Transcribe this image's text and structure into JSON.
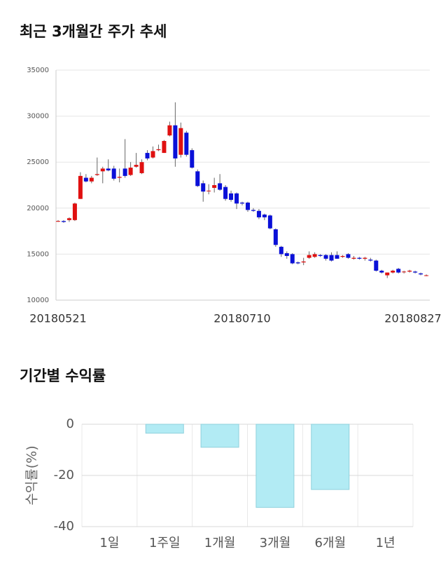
{
  "chart_data": [
    {
      "type": "candlestick",
      "title": "최근 3개월간 주가 추세",
      "categories": [
        "20180521",
        null,
        null,
        null,
        null,
        null,
        null,
        null,
        null,
        null,
        null,
        null,
        null,
        null,
        null,
        null,
        null,
        null,
        null,
        null,
        null,
        null,
        null,
        null,
        null,
        null,
        null,
        null,
        null,
        null,
        null,
        null,
        null,
        "20180710",
        null,
        null,
        null,
        null,
        null,
        null,
        null,
        null,
        null,
        null,
        null,
        null,
        null,
        null,
        null,
        null,
        null,
        null,
        null,
        null,
        null,
        null,
        null,
        null,
        null,
        null,
        null,
        null,
        null,
        null,
        null,
        null,
        "20180827"
      ],
      "open": [
        18600,
        18600,
        18700,
        18700,
        21000,
        23300,
        22900,
        23600,
        24000,
        24300,
        24300,
        23300,
        24300,
        23600,
        24500,
        23800,
        26000,
        25500,
        26300,
        26000,
        27900,
        29000,
        25800,
        28200,
        26300,
        24000,
        22700,
        21900,
        22200,
        22700,
        22300,
        21600,
        21600,
        20600,
        20600,
        19800,
        19700,
        19300,
        19200,
        17700,
        15800,
        15100,
        15000,
        14100,
        14100,
        14600,
        14700,
        14900,
        14900,
        14900,
        14900,
        14700,
        15000,
        14500,
        14600,
        14500,
        14400,
        14300,
        13200,
        12700,
        13000,
        13400,
        13100,
        13100,
        13100,
        12900,
        12700
      ],
      "high": [
        18700,
        18700,
        19000,
        20600,
        23900,
        23700,
        23500,
        25500,
        24500,
        25300,
        24600,
        24300,
        27500,
        25000,
        26000,
        25300,
        26300,
        26700,
        26900,
        27400,
        29400,
        31500,
        29300,
        28400,
        26500,
        24200,
        23000,
        22600,
        23300,
        23700,
        22500,
        21900,
        21700,
        20700,
        20700,
        20000,
        19900,
        19400,
        19300,
        17800,
        15900,
        15300,
        15100,
        14200,
        14600,
        15300,
        15200,
        15000,
        15000,
        15200,
        15300,
        14900,
        15100,
        14800,
        14700,
        14700,
        14600,
        14400,
        13300,
        13000,
        13300,
        13500,
        13200,
        13300,
        13200,
        13000,
        12800
      ],
      "low": [
        18500,
        18400,
        18500,
        18600,
        21000,
        22800,
        22700,
        23500,
        22700,
        24000,
        23000,
        22800,
        23300,
        23500,
        24400,
        23700,
        25200,
        25400,
        26200,
        26000,
        27800,
        24500,
        25500,
        25600,
        24300,
        22300,
        20700,
        21500,
        21700,
        21900,
        20800,
        20700,
        19900,
        20300,
        19600,
        19600,
        18800,
        18700,
        17700,
        15800,
        14700,
        14500,
        13900,
        13900,
        13800,
        14500,
        14600,
        14700,
        14300,
        14200,
        14500,
        14600,
        14500,
        14400,
        14400,
        14300,
        14200,
        13100,
        12900,
        12400,
        12900,
        12900,
        12900,
        13000,
        12900,
        12700,
        12600
      ],
      "close": [
        18600,
        18500,
        18900,
        20500,
        23500,
        22900,
        23300,
        23700,
        24300,
        24100,
        23200,
        23400,
        23500,
        24400,
        24700,
        25000,
        25400,
        26200,
        26400,
        27300,
        29000,
        25400,
        28700,
        25800,
        24400,
        22400,
        21800,
        21900,
        22500,
        22000,
        21000,
        20900,
        20500,
        20500,
        19800,
        19700,
        19000,
        19000,
        17800,
        16000,
        15000,
        14800,
        14000,
        14000,
        14200,
        14900,
        15000,
        14800,
        14500,
        14300,
        14500,
        14800,
        14600,
        14600,
        14500,
        14600,
        14300,
        13200,
        13000,
        13000,
        13200,
        13000,
        13100,
        13200,
        13000,
        12800,
        12700
      ],
      "up_color": "#e01010",
      "down_color": "#0a10d8",
      "ylim": [
        10000,
        35000
      ],
      "yticks": [
        10000,
        15000,
        20000,
        25000,
        30000,
        35000
      ],
      "grid": true
    },
    {
      "type": "bar",
      "title": "기간별 수익률",
      "ylabel": "수익률(%)",
      "categories": [
        "1일",
        "1주일",
        "1개월",
        "3개월",
        "6개월",
        "1년"
      ],
      "values": [
        null,
        -3.5,
        -9,
        -32.5,
        -25.5,
        null
      ],
      "color": "#b2ebf4",
      "ylim": [
        -40,
        0
      ],
      "yticks": [
        -40,
        -20,
        0
      ],
      "grid": true
    }
  ]
}
